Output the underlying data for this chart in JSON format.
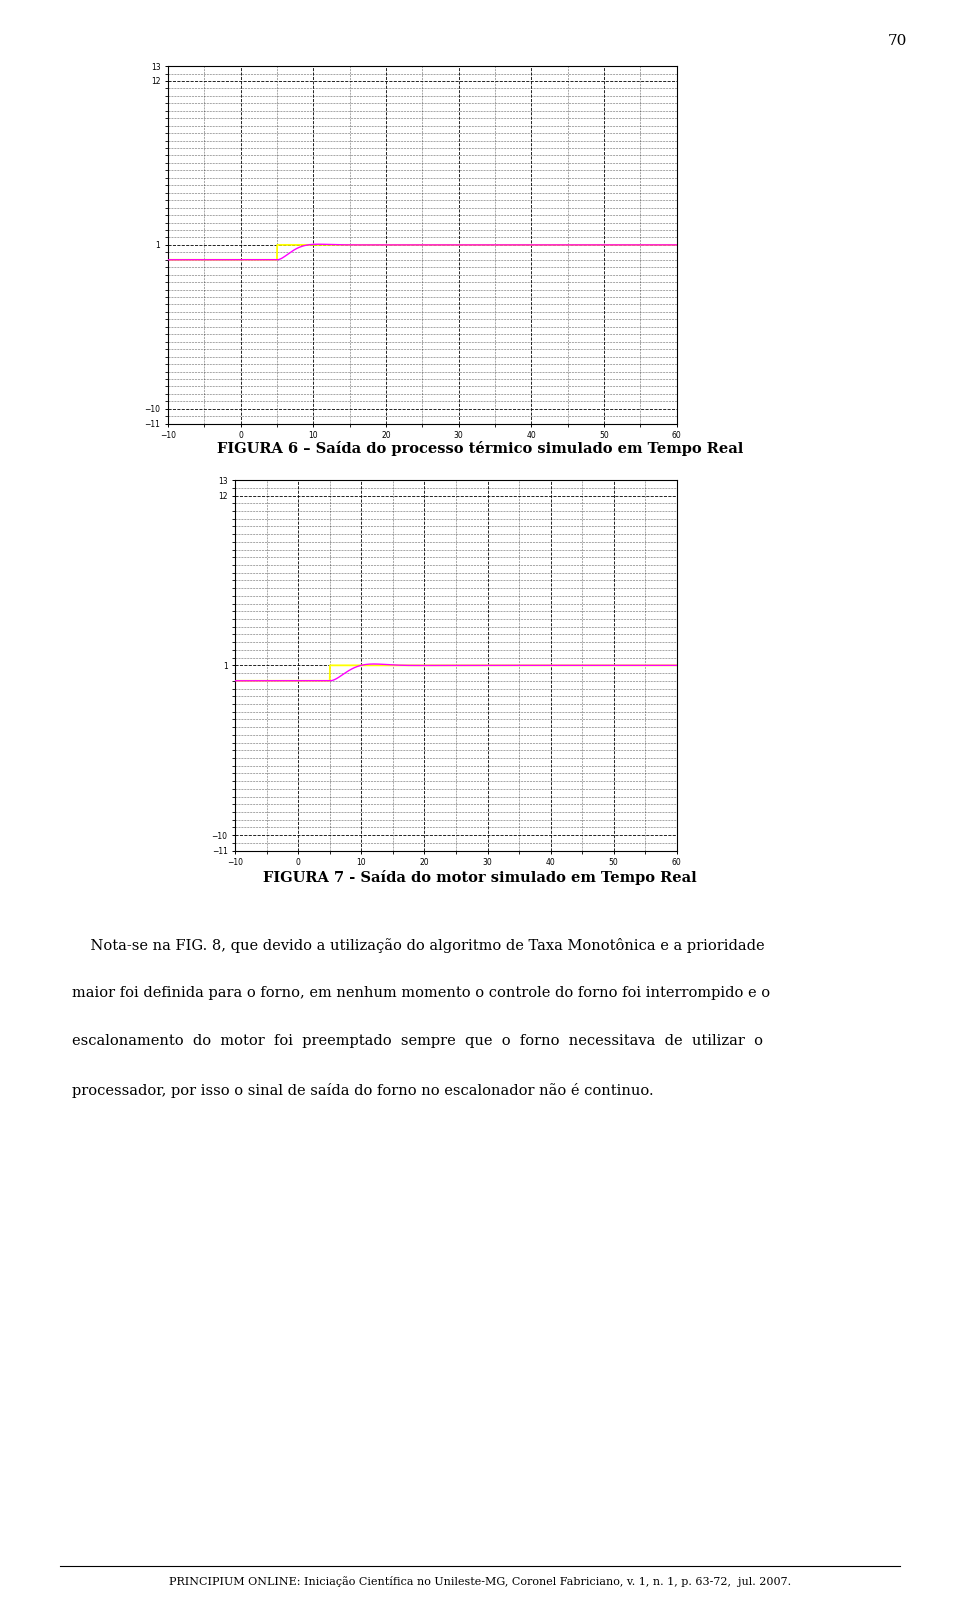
{
  "page_number": "70",
  "fig1_caption": "FIGURA 6 – Saída do processo térmico simulado em Tempo Real",
  "fig2_caption": "FIGURA 7 - Saída do motor simulado em Tempo Real",
  "footer_text": "PRINCIPIUM ONLINE: Iniciação Científica no Unileste-MG, Coronel Fabriciano, v. 1, n. 1, p. 63-72,  jul. 2007.",
  "yellow_color": "#ffff00",
  "magenta_color": "#ff00ff",
  "background_color": "#ffffff",
  "fig1_xlim": [
    -10,
    60
  ],
  "fig1_ylim": [
    -11,
    13
  ],
  "fig1_xticks": [
    -10,
    0,
    10,
    20,
    30,
    40,
    50,
    60
  ],
  "fig1_yticks": [
    -11,
    -10,
    1,
    12,
    13
  ],
  "fig2_xlim": [
    -10,
    60
  ],
  "fig2_ylim": [
    -11,
    13
  ],
  "fig2_xticks": [
    -10,
    0,
    10,
    20,
    30,
    40,
    50,
    60
  ],
  "fig2_yticks": [
    -11,
    -10,
    1,
    12,
    13
  ],
  "body_text_lines": [
    "    Nota-se na FIG. 8, que devido a utilização do algoritmo de Taxa Monotônica e a prioridade",
    "maior foi definida para o forno, em nenhum momento o controle do forno foi interrompido e o",
    "escalonamento  do  motor  foi  preemptado  sempre  que  o  forno  necessitava  de  utilizar  o",
    "processador, por isso o sinal de saída do forno no escalonador não é continuo."
  ]
}
